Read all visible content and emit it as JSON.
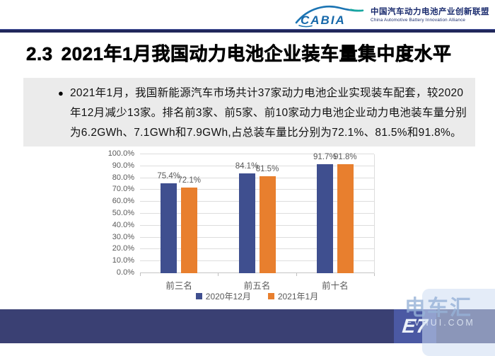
{
  "header": {
    "logo_text": "CABIA",
    "org_name_cn": "中国汽车动力电池产业创新联盟",
    "org_name_en": "China Automotive Battery Innovation Alliance"
  },
  "title": {
    "number": "2.3",
    "text": "2021年1月我国动力电池企业装车量集中度水平"
  },
  "summary": {
    "bullet": "●",
    "lines": [
      "2021年1月，我国新能源汽车市场共计37家动力电池企业实现装车配套，较2020",
      "年12月减少13家。排名前3家、前5家、前10家动力电池企业动力电池装车量分别",
      "为6.2GWh、7.1GWh和7.9GWh,占总装车量比分别为72.1%、81.5%和91.8%。"
    ]
  },
  "chart_data": {
    "type": "bar",
    "categories": [
      "前三名",
      "前五名",
      "前十名"
    ],
    "series": [
      {
        "name": "2020年12月",
        "color": "#3F4F8F",
        "values": [
          75.4,
          84.1,
          91.7
        ],
        "labels": [
          "75.4%",
          "84.1%",
          "91.7%"
        ]
      },
      {
        "name": "2021年1月",
        "color": "#E87F2E",
        "values": [
          72.1,
          81.5,
          91.8
        ],
        "labels": [
          "72.1%",
          "81.5%",
          "91.8%"
        ]
      }
    ],
    "title": "",
    "xlabel": "",
    "ylabel": "",
    "ylim": [
      0,
      100
    ],
    "ytick_step": 10,
    "yticks": [
      "0.0%",
      "10.0%",
      "20.0%",
      "30.0%",
      "40.0%",
      "50.0%",
      "60.0%",
      "70.0%",
      "80.0%",
      "90.0%",
      "100.0%"
    ],
    "grid": true,
    "legend_position": "bottom"
  },
  "watermark": {
    "logo_glyph": "E7",
    "brand_cn": "电车汇",
    "brand_en": "EVHUI.COM"
  },
  "colors": {
    "top_bar": "#20275A",
    "footer_bar": "#3A4073",
    "summary_bg": "#EBEBEB",
    "gridline": "#DDDDDD",
    "axis_text": "#595959",
    "logo_blue": "#1B74B3",
    "logo_teal": "#18A7A0"
  }
}
